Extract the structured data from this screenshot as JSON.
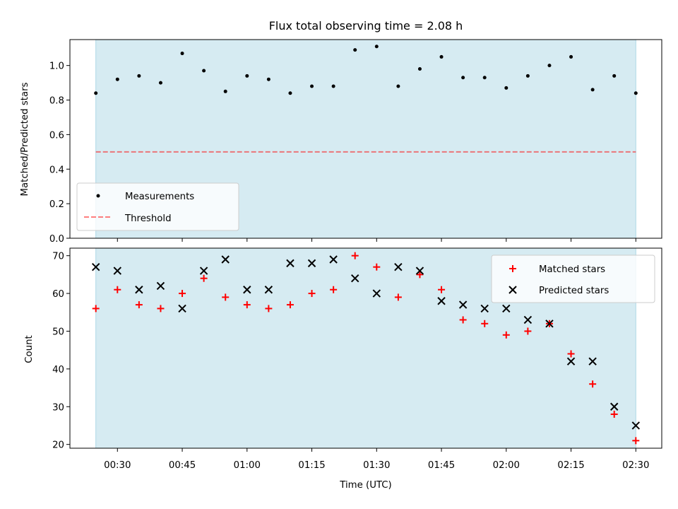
{
  "chart_data": [
    {
      "type": "scatter",
      "title": "Flux total observing time = 2.08 h",
      "xlabel": "",
      "ylabel": "Matched/Predicted stars",
      "ylim": [
        0,
        1.15
      ],
      "yticks": [
        "0.0",
        "0.2",
        "0.4",
        "0.6",
        "0.8",
        "1.0"
      ],
      "shaded_band": {
        "color": "#add8e6"
      },
      "threshold": 0.5,
      "legend_position": "lower-left",
      "legend": {
        "measurements": "Measurements",
        "threshold": "Threshold"
      },
      "x": [
        "00:25",
        "00:30",
        "00:35",
        "00:40",
        "00:45",
        "00:50",
        "00:55",
        "01:00",
        "01:05",
        "01:10",
        "01:15",
        "01:20",
        "01:25",
        "01:30",
        "01:35",
        "01:40",
        "01:45",
        "01:50",
        "01:55",
        "02:00",
        "02:05",
        "02:10",
        "02:15",
        "02:20",
        "02:25",
        "02:30"
      ],
      "values": [
        0.84,
        0.92,
        0.94,
        0.9,
        1.07,
        0.97,
        0.85,
        0.94,
        0.92,
        0.84,
        0.88,
        0.88,
        1.09,
        1.11,
        0.88,
        0.98,
        1.05,
        0.93,
        0.93,
        0.87,
        0.94,
        1.0,
        1.05,
        0.86,
        0.94,
        0.84
      ]
    },
    {
      "type": "scatter",
      "xlabel": "Time (UTC)",
      "ylabel": "Count",
      "ylim": [
        19,
        72
      ],
      "yticks": [
        "20",
        "30",
        "40",
        "50",
        "60",
        "70"
      ],
      "xticks": [
        "00:30",
        "00:45",
        "01:00",
        "01:15",
        "01:30",
        "01:45",
        "02:00",
        "02:15",
        "02:30"
      ],
      "legend_position": "upper-right",
      "series": [
        {
          "name": "Matched stars",
          "color": "#ff0000",
          "marker": "plus",
          "values": [
            56,
            61,
            57,
            56,
            60,
            64,
            59,
            57,
            56,
            57,
            60,
            61,
            70,
            67,
            59,
            65,
            61,
            53,
            52,
            49,
            50,
            52,
            44,
            36,
            28,
            21
          ]
        },
        {
          "name": "Predicted stars",
          "color": "#000000",
          "marker": "x",
          "values": [
            67,
            66,
            61,
            62,
            56,
            66,
            69,
            61,
            61,
            68,
            68,
            69,
            64,
            60,
            67,
            66,
            58,
            57,
            56,
            56,
            53,
            52,
            42,
            42,
            30,
            25
          ]
        }
      ]
    }
  ]
}
